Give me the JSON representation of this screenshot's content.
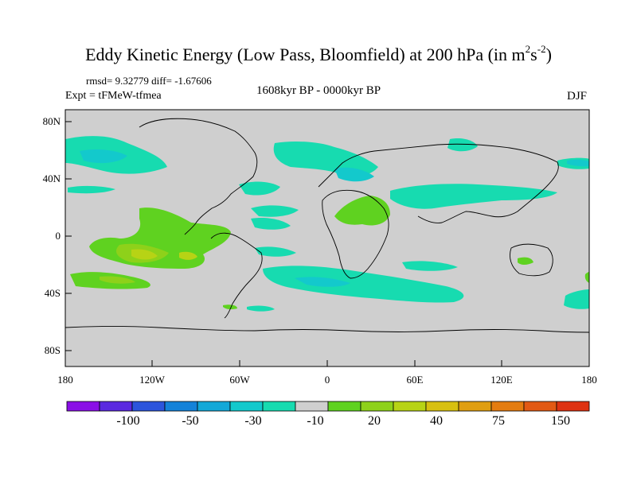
{
  "title": {
    "main": "Eddy Kinetic Energy (Low Pass, Bloomfield) at 200 hPa (in m",
    "exp1": "2",
    "mid": "s",
    "exp2": "-2",
    "close": ")"
  },
  "stats": "rmsd= 9.32779 diff= -1.67606",
  "experiment": "Expt = tFMeW-tfmea",
  "period": "1608kyr BP - 0000kyr BP",
  "season": "DJF",
  "axes": {
    "y_ticks": [
      "80N",
      "40N",
      "0",
      "40S",
      "80S"
    ],
    "x_ticks": [
      "180",
      "120W",
      "60W",
      "0",
      "60E",
      "120E",
      "180"
    ]
  },
  "colorbar": {
    "labels": [
      "-100",
      "-50",
      "-30",
      "-10",
      "20",
      "40",
      "75",
      "150"
    ],
    "colors": [
      "#8a0fe6",
      "#5a29e0",
      "#2c55dc",
      "#1482d9",
      "#13a8d8",
      "#13c9cc",
      "#17dbb0",
      "#cfcfcf",
      "#5fd220",
      "#8ed11a",
      "#b7d315",
      "#d8c010",
      "#e09e10",
      "#e47c10",
      "#e25914",
      "#de3212"
    ]
  }
}
